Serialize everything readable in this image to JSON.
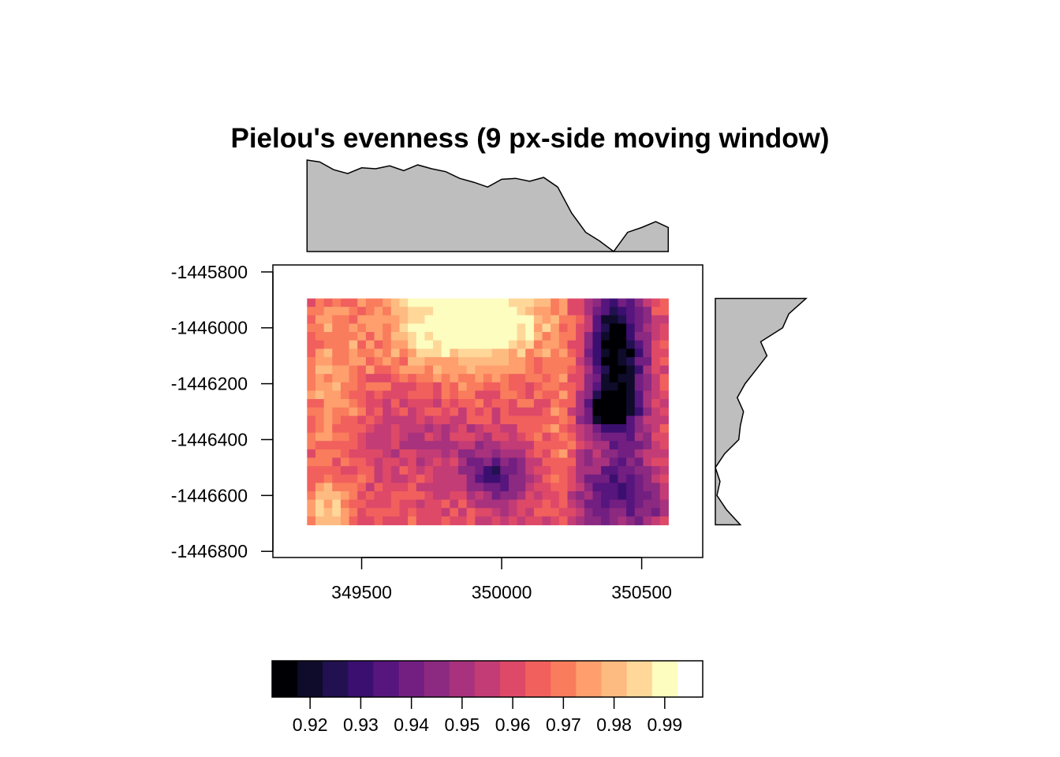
{
  "chart_data": {
    "type": "heatmap",
    "title": "Pielou's evenness (9 px-side moving window)",
    "xlabel": "",
    "ylabel": "",
    "x_ticks": [
      "349500",
      "350000",
      "350500"
    ],
    "x_tick_values": [
      349500,
      350000,
      350500
    ],
    "y_ticks": [
      "-1445800",
      "-1446000",
      "-1446200",
      "-1446400",
      "-1446600",
      "-1446800"
    ],
    "y_tick_values": [
      -1445800,
      -1446000,
      -1446200,
      -1446400,
      -1446600,
      -1446800
    ],
    "xlim": [
      349183,
      350718
    ],
    "ylim": [
      -1446822,
      -1445775
    ],
    "raster_extent": {
      "xmin": 349305,
      "xmax": 350595,
      "ymin": -1446705,
      "ymax": -1445895
    },
    "cell_size": 30,
    "legend": {
      "placement": "bottom",
      "breaks": [
        0.9125,
        0.9175,
        0.9225,
        0.9275,
        0.9325,
        0.9375,
        0.9425,
        0.9475,
        0.9525,
        0.9575,
        0.9625,
        0.9675,
        0.9725,
        0.9775,
        0.9825,
        0.9875,
        0.9925,
        0.9975
      ],
      "colors": [
        "#000004",
        "#0f0b2a",
        "#221150",
        "#3b0f70",
        "#57157e",
        "#721f81",
        "#8c2981",
        "#a8327d",
        "#c43c75",
        "#de4968",
        "#f1605d",
        "#f97c5d",
        "#fe9f6d",
        "#febb81",
        "#fed799",
        "#fcfdbf"
      ],
      "tick_labels": [
        "0.92",
        "0.93",
        "0.94",
        "0.95",
        "0.96",
        "0.97",
        "0.98",
        "0.99"
      ],
      "tick_values": [
        0.92,
        0.93,
        0.94,
        0.95,
        0.96,
        0.97,
        0.98,
        0.99
      ]
    },
    "top_profile": {
      "description_role": "column mean of evenness along x",
      "x": [
        349305,
        349350,
        349400,
        349450,
        349500,
        349550,
        349600,
        349650,
        349700,
        349750,
        349800,
        349850,
        349900,
        349950,
        350000,
        350050,
        350100,
        350150,
        350200,
        350250,
        350300,
        350350,
        350400,
        350450,
        350500,
        350550,
        350595
      ],
      "value": [
        0.98,
        0.978,
        0.97,
        0.966,
        0.972,
        0.971,
        0.974,
        0.969,
        0.975,
        0.971,
        0.968,
        0.961,
        0.957,
        0.952,
        0.96,
        0.961,
        0.958,
        0.962,
        0.952,
        0.925,
        0.905,
        0.896,
        0.885,
        0.905,
        0.91,
        0.916,
        0.91
      ]
    },
    "right_profile": {
      "description_role": "row mean of evenness along y",
      "y": [
        -1445895,
        -1445950,
        -1446000,
        -1446050,
        -1446100,
        -1446150,
        -1446200,
        -1446250,
        -1446300,
        -1446350,
        -1446400,
        -1446450,
        -1446500,
        -1446550,
        -1446600,
        -1446650,
        -1446705
      ],
      "value": [
        0.965,
        0.954,
        0.95,
        0.936,
        0.94,
        0.933,
        0.926,
        0.921,
        0.925,
        0.923,
        0.922,
        0.913,
        0.907,
        0.91,
        0.908,
        0.914,
        0.923
      ]
    },
    "grid": false,
    "palette": "magma"
  }
}
